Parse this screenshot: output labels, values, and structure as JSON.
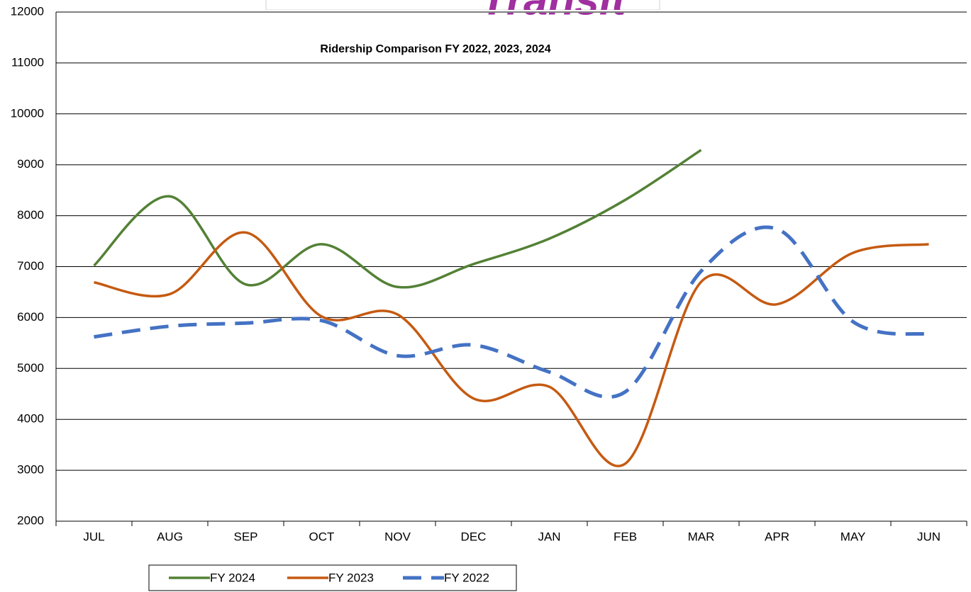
{
  "chart_data": {
    "type": "line",
    "logo": "Transit",
    "title": "Ridership Comparison   FY 2022, 2023, 2024",
    "categories": [
      "JUL",
      "AUG",
      "SEP",
      "OCT",
      "NOV",
      "DEC",
      "JAN",
      "FEB",
      "MAR",
      "APR",
      "MAY",
      "JUN"
    ],
    "series": [
      {
        "name": "FY 2024",
        "color": "#538135",
        "dash": false,
        "values": [
          7020,
          8380,
          6650,
          7440,
          6600,
          7050,
          7550,
          8310,
          9290,
          null,
          null,
          null
        ]
      },
      {
        "name": "FY 2023",
        "color": "#c55a11",
        "dash": false,
        "values": [
          6690,
          6460,
          7670,
          6020,
          6060,
          4410,
          4640,
          3130,
          6700,
          6260,
          7270,
          7440
        ]
      },
      {
        "name": "FY 2022",
        "color": "#4472c4",
        "dash": true,
        "values": [
          5620,
          5830,
          5890,
          5940,
          5250,
          5460,
          4930,
          4540,
          6910,
          7740,
          5920,
          5670
        ]
      }
    ],
    "ylim": [
      2000,
      12000
    ],
    "yticks": [
      2000,
      3000,
      4000,
      5000,
      6000,
      7000,
      8000,
      9000,
      10000,
      11000,
      12000
    ],
    "grid": true,
    "smooth": true,
    "legend": "bottom"
  }
}
